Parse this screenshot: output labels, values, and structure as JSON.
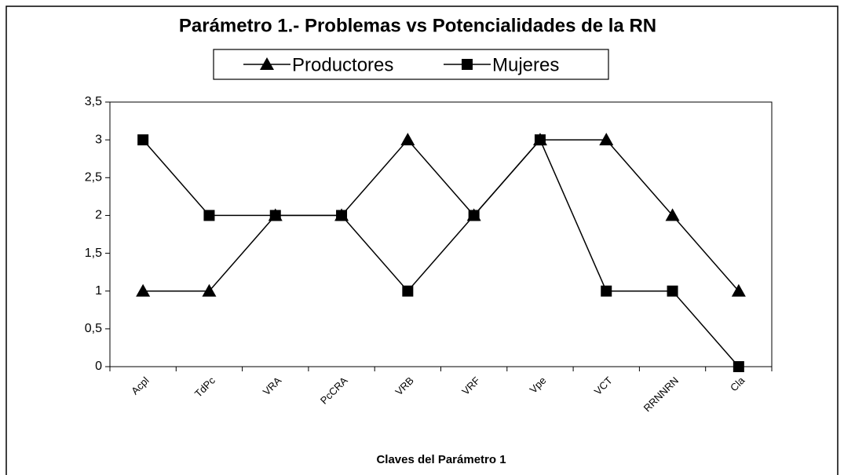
{
  "chart_data": {
    "type": "line",
    "title": "Parámetro 1.- Problemas vs Potencialidades de la RN",
    "x_label": "Claves del Parámetro 1",
    "categories": [
      "Acpl",
      "TdPc",
      "VRA",
      "PcCRA",
      "VRB",
      "VRF",
      "Vpe",
      "VCT",
      "RRNNRN",
      "Cla"
    ],
    "series": [
      {
        "name": "Productores",
        "color": "#000000",
        "marker": "triangle",
        "values": [
          1,
          1,
          2,
          2,
          3,
          2,
          3,
          3,
          2,
          1
        ]
      },
      {
        "name": "Mujeres",
        "color": "#000000",
        "marker": "square",
        "values": [
          3,
          2,
          2,
          2,
          1,
          2,
          3,
          1,
          1,
          0
        ]
      }
    ],
    "ylim": [
      0,
      3.5
    ],
    "yticks": [
      0,
      {
        "value": 0.5,
        "label": "0,5"
      },
      1,
      {
        "value": 1.5,
        "label": "1,5"
      },
      2,
      {
        "value": 2.5,
        "label": "2,5"
      },
      3,
      {
        "value": 3.5,
        "label": "3,5"
      }
    ],
    "grid": false,
    "legend": "top"
  }
}
